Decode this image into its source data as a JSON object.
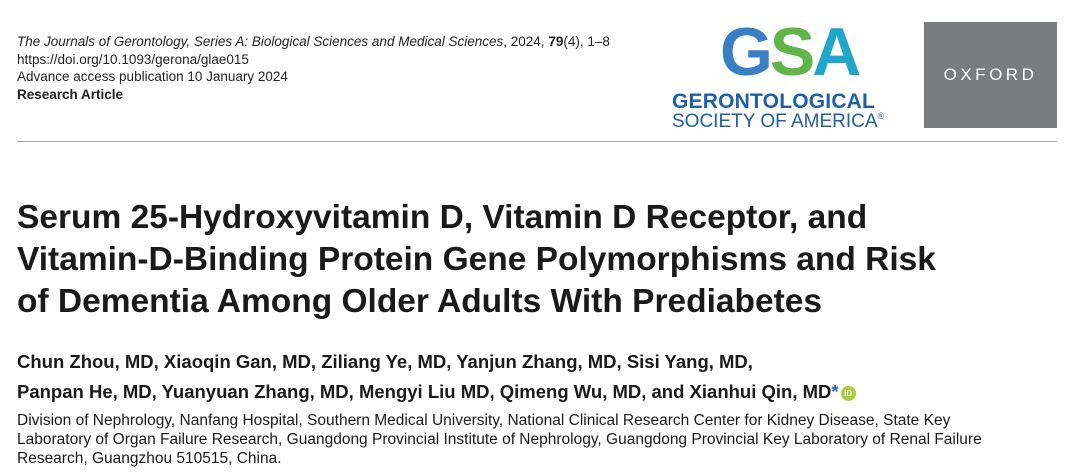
{
  "header": {
    "journal_name": "The Journals of Gerontology, Series A: Biological Sciences and Medical Sciences",
    "journal_year": ", 2024, ",
    "journal_volume": "79",
    "journal_issue_pages": "(4), 1–8",
    "doi": "https://doi.org/10.1093/gerona/glae015",
    "access_note": "Advance access publication 10 January 2024",
    "article_type": "Research Article"
  },
  "logos": {
    "gsa_g": "G",
    "gsa_s": "S",
    "gsa_a": "A",
    "gsa_line1": "GERONTOLOGICAL",
    "gsa_line2": "SOCIETY OF AMERICA",
    "gsa_reg": "®",
    "oxford": "OXFORD",
    "colors": {
      "gsa_blue": "#1f5ea8",
      "gsa_green": "#5fb54a",
      "gsa_teal": "#20a6c8",
      "oxford_gray": "#7b7c7e"
    }
  },
  "title": {
    "line1": "Serum 25-Hydroxyvitamin D, Vitamin D Receptor, and",
    "line2": "Vitamin-D-Binding Protein Gene Polymorphisms and Risk",
    "line3": "of Dementia Among Older Adults With Prediabetes"
  },
  "authors": {
    "line1": "Chun Zhou, MD, Xiaoqin Gan, MD, Ziliang Ye, MD, Yanjun Zhang, MD, Sisi Yang, MD,",
    "line2": "Panpan He, MD, Yuanyuan Zhang, MD, Mengyi Liu MD, Qimeng Wu, MD, and Xianhui Qin, MD",
    "corresponding_mark": "*",
    "orcid_icon": "orcid-icon",
    "orcid_text": "iD"
  },
  "affiliation": {
    "line1": "Division of Nephrology, Nanfang Hospital, Southern Medical University, National Clinical Research Center for Kidney Disease, State Key",
    "line2": "Laboratory of Organ Failure Research, Guangdong Provincial Institute of Nephrology, Guangdong Provincial Key Laboratory of Renal Failure",
    "line3": "Research, Guangzhou 510515, China."
  }
}
